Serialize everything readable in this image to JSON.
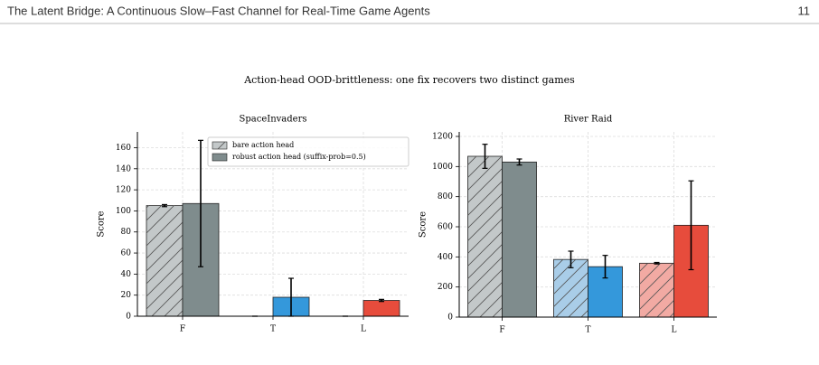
{
  "header": {
    "title": "The Latent Bridge: A Continuous Slow–Fast Channel for Real-Time Game Agents",
    "page": "11"
  },
  "figure_title": "Action-head OOD-brittleness: one fix recovers two distinct games",
  "chart_data": [
    {
      "type": "bar",
      "title": "SpaceInvaders",
      "ylabel": "Score",
      "categories": [
        "F",
        "T",
        "L"
      ],
      "series": [
        {
          "name": "bare action head",
          "hatch": true,
          "colors": [
            "#c3c8c9",
            "#a9cde8",
            "#f2aaa3"
          ],
          "values": [
            105,
            0,
            0
          ],
          "errors": [
            1,
            0,
            0
          ]
        },
        {
          "name": "robust action head (suffix-prob=0.5)",
          "hatch": false,
          "colors": [
            "#7f8c8d",
            "#3498db",
            "#e74c3c"
          ],
          "values": [
            107,
            18,
            15
          ],
          "errors": [
            60,
            18,
            1
          ]
        }
      ],
      "ylim": [
        0,
        175
      ],
      "yticks": [
        0,
        20,
        40,
        60,
        80,
        100,
        120,
        140,
        160
      ],
      "grid": true,
      "legend": "upper right"
    },
    {
      "type": "bar",
      "title": "River Raid",
      "ylabel": "Score",
      "categories": [
        "F",
        "T",
        "L"
      ],
      "series": [
        {
          "hatch": true,
          "colors": [
            "#c3c8c9",
            "#a9cde8",
            "#f2aaa3"
          ],
          "values": [
            1068,
            383,
            358
          ],
          "errors": [
            80,
            55,
            5
          ]
        },
        {
          "hatch": false,
          "colors": [
            "#7f8c8d",
            "#3498db",
            "#e74c3c"
          ],
          "values": [
            1030,
            335,
            610
          ],
          "errors": [
            20,
            75,
            295
          ]
        }
      ],
      "ylim": [
        0,
        1230
      ],
      "yticks": [
        0,
        200,
        400,
        600,
        800,
        1000,
        1200
      ],
      "grid": true
    }
  ]
}
